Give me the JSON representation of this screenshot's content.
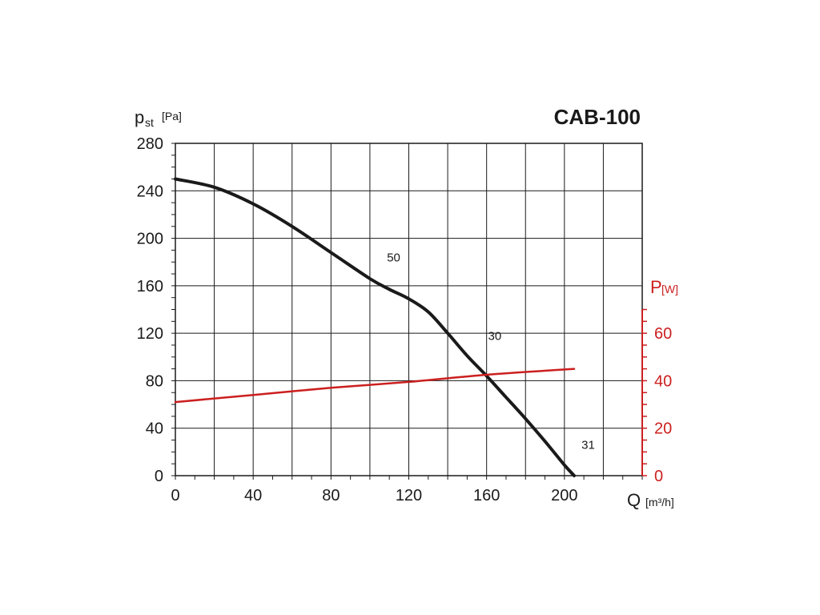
{
  "chart_data": {
    "type": "line",
    "title": "CAB-100",
    "ylabel": "p",
    "ylabel_sub": "st",
    "ylabel_unit": "[Pa]",
    "xlabel": "Q",
    "xlabel_unit": "[m³/h]",
    "y2label": "P",
    "y2label_unit": "[W]",
    "xlim": [
      0,
      240
    ],
    "ylim": [
      0,
      280
    ],
    "y2lim": [
      0,
      70
    ],
    "x_ticks": [
      "0",
      "40",
      "80",
      "120",
      "160",
      "200"
    ],
    "y_ticks": [
      "0",
      "40",
      "80",
      "120",
      "160",
      "200",
      "240",
      "280"
    ],
    "y2_ticks": [
      "0",
      "20",
      "40",
      "60"
    ],
    "grid": true,
    "series": [
      {
        "axis": "left",
        "color": "#1a1a1a",
        "x": [
          0,
          20,
          40,
          60,
          80,
          100,
          110,
          120,
          130,
          140,
          150,
          160,
          170,
          180,
          190,
          200,
          205
        ],
        "values": [
          250,
          243,
          229,
          210,
          188,
          166,
          157,
          149,
          138,
          120,
          101,
          84,
          66,
          48,
          29,
          9,
          0
        ]
      },
      {
        "axis": "right",
        "color": "#cc1f1f",
        "x": [
          0,
          40,
          80,
          120,
          160,
          205
        ],
        "values": [
          31,
          34,
          37,
          39.5,
          42.5,
          45
        ]
      }
    ],
    "annotations": [
      {
        "text": "50",
        "x": 110,
        "y": 167
      },
      {
        "text": "30",
        "x": 162,
        "y": 101
      },
      {
        "text": "31",
        "x": 210,
        "y": 9
      }
    ]
  }
}
